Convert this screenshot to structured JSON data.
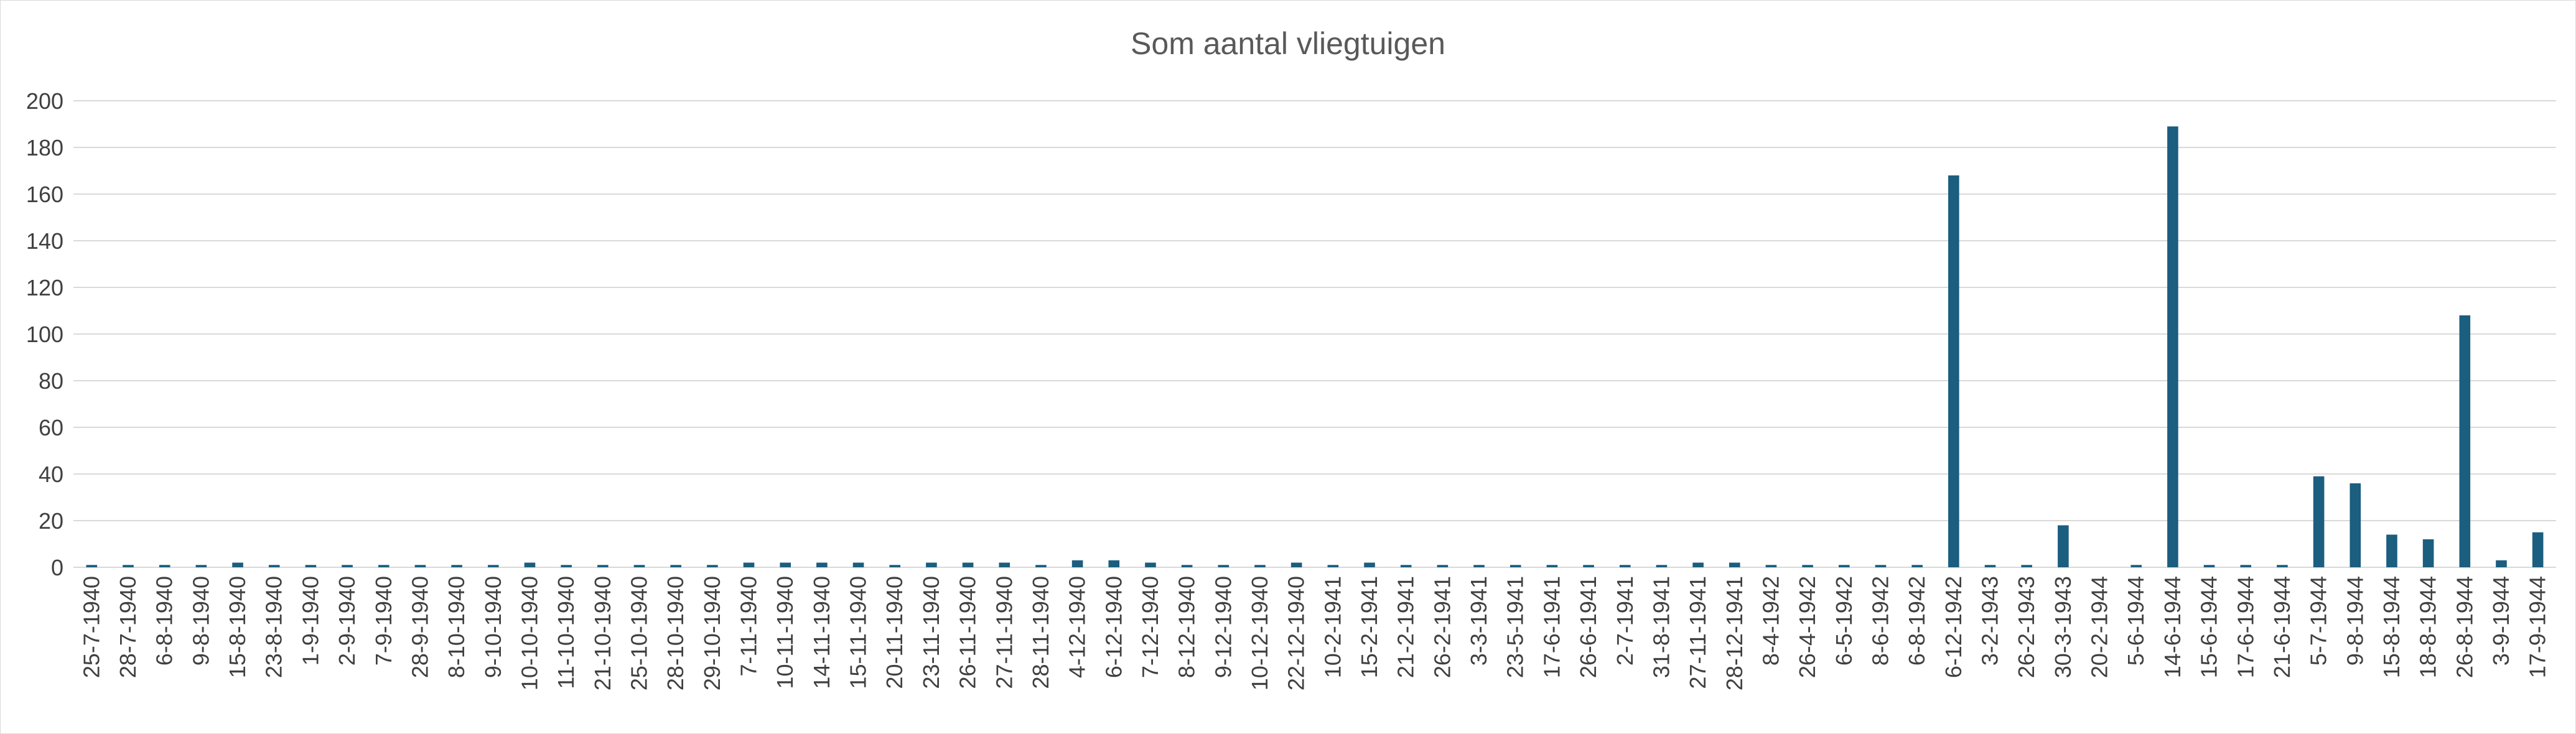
{
  "chart_data": {
    "type": "bar",
    "title": "Som aantal vliegtuigen",
    "xlabel": "",
    "ylabel": "",
    "ylim": [
      0,
      200
    ],
    "yticks": [
      0,
      20,
      40,
      60,
      80,
      100,
      120,
      140,
      160,
      180,
      200
    ],
    "grid": true,
    "legend": "none",
    "bar_color": "#1B5E7F",
    "gridline_color": "#d9d9d9",
    "categories": [
      "25-7-1940",
      "28-7-1940",
      "6-8-1940",
      "9-8-1940",
      "15-8-1940",
      "23-8-1940",
      "1-9-1940",
      "2-9-1940",
      "7-9-1940",
      "28-9-1940",
      "8-10-1940",
      "9-10-1940",
      "10-10-1940",
      "11-10-1940",
      "21-10-1940",
      "25-10-1940",
      "28-10-1940",
      "29-10-1940",
      "7-11-1940",
      "10-11-1940",
      "14-11-1940",
      "15-11-1940",
      "20-11-1940",
      "23-11-1940",
      "26-11-1940",
      "27-11-1940",
      "28-11-1940",
      "4-12-1940",
      "6-12-1940",
      "7-12-1940",
      "8-12-1940",
      "9-12-1940",
      "10-12-1940",
      "22-12-1940",
      "10-2-1941",
      "15-2-1941",
      "21-2-1941",
      "26-2-1941",
      "3-3-1941",
      "23-5-1941",
      "17-6-1941",
      "26-6-1941",
      "2-7-1941",
      "31-8-1941",
      "27-11-1941",
      "28-12-1941",
      "8-4-1942",
      "26-4-1942",
      "6-5-1942",
      "8-6-1942",
      "6-8-1942",
      "6-12-1942",
      "3-2-1943",
      "26-2-1943",
      "30-3-1943",
      "20-2-1944",
      "5-6-1944",
      "14-6-1944",
      "15-6-1944",
      "17-6-1944",
      "21-6-1944",
      "5-7-1944",
      "9-8-1944",
      "15-8-1944",
      "18-8-1944",
      "26-8-1944",
      "3-9-1944",
      "17-9-1944"
    ],
    "values": [
      1,
      1,
      1,
      1,
      2,
      1,
      1,
      1,
      1,
      1,
      1,
      1,
      2,
      1,
      1,
      1,
      1,
      1,
      2,
      2,
      2,
      2,
      1,
      2,
      2,
      2,
      1,
      3,
      3,
      2,
      1,
      1,
      1,
      2,
      1,
      2,
      1,
      1,
      1,
      1,
      1,
      1,
      1,
      1,
      2,
      2,
      1,
      1,
      1,
      1,
      1,
      168,
      1,
      1,
      18,
      0,
      1,
      189,
      1,
      1,
      1,
      39,
      36,
      14,
      12,
      108,
      3,
      15
    ]
  }
}
